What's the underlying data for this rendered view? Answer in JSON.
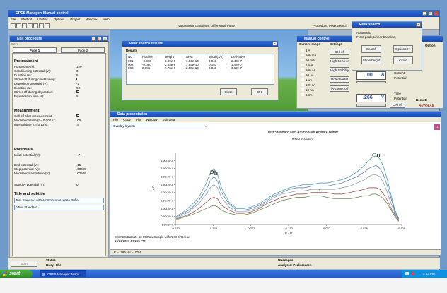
{
  "main_window": {
    "title": "GPES Manager: Manual control",
    "menu": [
      "File",
      "Method",
      "Utilities",
      "Options",
      "Project",
      "Window",
      "Help"
    ],
    "center_text": "Voltammetric analysis: Differential Pulse",
    "procedure_text": "Procedure: Peak Search"
  },
  "edit_procedure": {
    "title": "Edit procedure",
    "tabs": [
      "Page 1",
      "Page 2"
    ],
    "pretreatment_heading": "Pretreatment",
    "pretreatment": [
      {
        "label": "Purge time (s):",
        "value": "120"
      },
      {
        "label": "Conditioning potential (V):",
        "value": "0"
      },
      {
        "label": "Duration (s):",
        "value": "5"
      },
      {
        "label": "Stirrer off during conditioning:",
        "value": ""
      },
      {
        "label": "Deposition potential (V):",
        "value": "-1"
      },
      {
        "label": "Duration (s):",
        "value": "90"
      },
      {
        "label": "Stirrer off during deposition:",
        "value": "X"
      },
      {
        "label": "Equilibration time (s):",
        "value": "5"
      }
    ],
    "measurement_heading": "Measurement",
    "measurement": [
      {
        "label": "Cell off after measurement:",
        "value": "X"
      },
      {
        "label": "Modulation time (t = 0.002 s):",
        "value": ".05"
      },
      {
        "label": "Interval time (t = 0.13 s):",
        "value": ".5"
      }
    ],
    "potentials_heading": "Potentials",
    "potentials": [
      {
        "label": "Initial potential (V):",
        "value": "-.7"
      },
      {
        "label": "End potential (V):",
        "value": ".15"
      },
      {
        "label": "Step potential (V):",
        "value": ".00495"
      },
      {
        "label": "Modulation amplitude (V):",
        "value": ".02505"
      },
      {
        "label": "Standby potential (V):",
        "value": "0"
      }
    ],
    "title_heading": "Title and subtitle",
    "title_value": "Test Standard with Ammonium Acetate Buffer",
    "subtitle_value": "0.5ml Standard"
  },
  "peak_results": {
    "title": "Peak search results",
    "results_label": "Results",
    "columns": [
      "No",
      "Position",
      "Height",
      "Area",
      "Width(1/2)",
      "Derivative"
    ],
    "rows": [
      [
        "001",
        "-0.363",
        "3.99e-8",
        "1.86e-10",
        "0.049",
        "2.43e-7"
      ],
      [
        "002",
        "-0.080",
        "2.63e-8",
        "1.95e-10",
        "0.153",
        "1.43e-7"
      ],
      [
        "003",
        "0.081",
        "5.76e-8",
        "2.59e-10",
        "0.049",
        "3.13e-7"
      ]
    ],
    "close_label": "Close",
    "ok_label": "OK"
  },
  "peak_search": {
    "title": "Peak search",
    "info_line1": "Automatic",
    "info_line2": "Front peak, Linear baseline,",
    "search_label": "Search",
    "options_label": "Options >>",
    "show_height_label": "Show height",
    "close_label": "Close",
    "option_strip": "Option"
  },
  "manual_control": {
    "title": "Manual control",
    "current_range_heading": "Current range",
    "settings_heading": "Settings",
    "ranges": [
      "1 A",
      "100 mA",
      "10 mA",
      "1 mA",
      "100 uA",
      "10 uA",
      "1 uA",
      "100 nA",
      "10 nA",
      "1 nA"
    ],
    "cell_off_label": "Cell off",
    "high_sens_label": "High Sens on",
    "high_stability_label": "High Stability",
    "potentiostat_label": "Potentiostat",
    "ir_comp_label": "iR-comp. off",
    "current_value": ".00",
    "current_unit": "A",
    "potential_value": ".266",
    "potential_unit": "V",
    "mode_current": "Current",
    "mode_potential": "Potential",
    "time_label": "Time",
    "potential_label": "Potential",
    "cell_off_btn": "Cell off",
    "remote_label": "Remote",
    "brand": "AUTOLAB"
  },
  "data_presentation": {
    "title": "Data presentation",
    "menu": [
      "File",
      "Copy",
      "Plot",
      "Window",
      "Edit data"
    ],
    "overlay_label": "Overlay layouts",
    "file_line1": "E:\\GPES Data\\21-10-09\\Raw Sample with NH3 BFR.ieiw",
    "file_line2": "10/21/2009 4:51:21 PM",
    "status_line": "E = .266 V    I = .00 A"
  },
  "chart_data": {
    "type": "line",
    "title": "Test Standard with Ammonium Acetate Buffer",
    "subtitle": "0.5ml Standard",
    "xlabel": "E / V",
    "ylabel": "i / A",
    "xlim": [
      -0.472,
      0.128
    ],
    "ylim": [
      0,
      4.5e-08
    ],
    "xticks": [
      "-0.472",
      "-0.372",
      "-0.272",
      "-0.172",
      "-0.072",
      "0.028",
      "0.128"
    ],
    "yticks": [
      "0.00x10^0",
      "0.50x10^-8",
      "1.00x10^-8",
      "1.50x10^-8",
      "2.00x10^-8",
      "2.50x10^-8",
      "3.00x10^-8",
      "3.50x10^-8",
      "4.00x10^-8"
    ],
    "annotations": [
      {
        "text": "Pb",
        "x": -0.37,
        "y": 3e-08
      },
      {
        "text": "Cu",
        "x": 0.06,
        "y": 4.1e-08
      },
      {
        "text": "2",
        "x": -0.09,
        "y": 2e-08
      }
    ],
    "x": [
      -0.47,
      -0.45,
      -0.43,
      -0.41,
      -0.39,
      -0.38,
      -0.37,
      -0.36,
      -0.35,
      -0.33,
      -0.31,
      -0.29,
      -0.27,
      -0.25,
      -0.23,
      -0.21,
      -0.19,
      -0.17,
      -0.15,
      -0.13,
      -0.11,
      -0.09,
      -0.07,
      -0.05,
      -0.03,
      -0.01,
      0.01,
      0.03,
      0.04,
      0.05,
      0.06,
      0.07,
      0.08,
      0.09,
      0.1,
      0.11,
      0.12
    ],
    "series": [
      {
        "color": "#3a8f8f",
        "values": [
          0.5,
          0.8,
          1.2,
          1.7,
          2.6,
          3.2,
          3.5,
          3.1,
          2.3,
          1.4,
          1.0,
          1.0,
          1.1,
          1.3,
          1.6,
          1.9,
          2.1,
          2.3,
          2.4,
          2.5,
          2.5,
          2.6,
          2.6,
          2.7,
          2.8,
          3.0,
          3.3,
          3.7,
          4.0,
          4.2,
          4.3,
          4.1,
          3.6,
          2.8,
          1.8,
          0.9,
          0.4
        ]
      },
      {
        "color": "#4a6fb5",
        "values": [
          0.45,
          0.7,
          1.0,
          1.5,
          2.2,
          2.7,
          3.0,
          2.7,
          2.0,
          1.3,
          0.9,
          0.9,
          1.0,
          1.2,
          1.5,
          1.8,
          2.0,
          2.2,
          2.3,
          2.3,
          2.4,
          2.4,
          2.4,
          2.5,
          2.6,
          2.8,
          3.0,
          3.3,
          3.5,
          3.6,
          3.7,
          3.5,
          3.1,
          2.4,
          1.6,
          0.8,
          0.35
        ]
      },
      {
        "color": "#7a8fa0",
        "values": [
          0.4,
          0.6,
          0.9,
          1.3,
          1.9,
          2.3,
          2.5,
          2.3,
          1.7,
          1.1,
          0.8,
          0.8,
          0.9,
          1.1,
          1.4,
          1.7,
          1.9,
          2.0,
          2.1,
          2.1,
          2.2,
          2.2,
          2.2,
          2.2,
          2.3,
          2.4,
          2.6,
          2.8,
          3.0,
          3.1,
          3.1,
          3.0,
          2.6,
          2.0,
          1.3,
          0.7,
          0.3
        ]
      },
      {
        "color": "#8b3b3b",
        "values": [
          0.35,
          0.5,
          0.7,
          1.0,
          1.4,
          1.6,
          1.7,
          1.6,
          1.2,
          0.9,
          0.7,
          0.7,
          0.8,
          1.0,
          1.3,
          1.5,
          1.7,
          1.8,
          1.9,
          1.9,
          2.0,
          2.0,
          2.0,
          1.9,
          1.9,
          2.0,
          2.1,
          2.2,
          2.3,
          2.3,
          2.3,
          2.2,
          1.9,
          1.5,
          1.0,
          0.6,
          0.25
        ]
      },
      {
        "color": "#5a7a3a",
        "values": [
          0.3,
          0.45,
          0.6,
          0.8,
          1.0,
          1.1,
          1.2,
          1.1,
          0.9,
          0.7,
          0.6,
          0.6,
          0.7,
          0.9,
          1.1,
          1.3,
          1.5,
          1.6,
          1.7,
          1.7,
          1.8,
          1.8,
          1.7,
          1.6,
          1.6,
          1.6,
          1.7,
          1.8,
          1.8,
          1.9,
          1.9,
          1.8,
          1.6,
          1.3,
          0.9,
          0.5,
          0.2
        ]
      }
    ]
  },
  "status_bar": {
    "status_heading": "Status",
    "status_value": "Busy: Idle",
    "messages_heading": "Messages",
    "messages_value": "Analysis: Peak search",
    "start_label": "Start"
  },
  "taskbar": {
    "start_label": "start",
    "task_label": "GPES Manager: Manu...",
    "clock": "4:53 PM"
  }
}
